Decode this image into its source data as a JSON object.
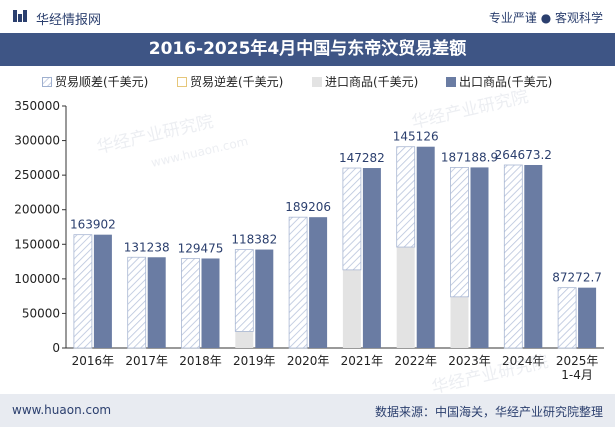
{
  "header": {
    "brand": "华经情报网",
    "slogan": "专业严谨 ● 客观科学"
  },
  "footer": {
    "website": "www.huaon.com",
    "source": "数据来源：中国海关，华经产业研究院整理"
  },
  "watermark": {
    "text": "华经产业研究院",
    "url": "www.huaon.com"
  },
  "colors": {
    "title_bg": "#3e5585",
    "export_bar": "#6a7ca3",
    "import_bar": "#e3e3e3",
    "surplus_stripe": "#9fb0cf",
    "footer_bg": "#e8ebf1"
  },
  "chart_data": {
    "type": "bar",
    "title": "2016-2025年4月中国与东帝汶贸易差额",
    "categories": [
      "2016年",
      "2017年",
      "2018年",
      "2019年",
      "2020年",
      "2021年",
      "2022年",
      "2023年",
      "2024年",
      "2025年\n1-4月"
    ],
    "series": [
      {
        "name": "贸易顺差(千美元)",
        "values": [
          163902,
          131238,
          129475,
          118382,
          189206,
          147282,
          145126,
          187188.9,
          264673.2,
          87272.7
        ]
      },
      {
        "name": "贸易逆差(千美元)",
        "values": [
          0,
          0,
          0,
          0,
          0,
          0,
          0,
          0,
          0,
          0
        ]
      },
      {
        "name": "进口商品(千美元)",
        "values": [
          0,
          0,
          0,
          24000,
          0,
          113000,
          146000,
          74000,
          0,
          0
        ]
      },
      {
        "name": "出口商品(千美元)",
        "values": [
          163902,
          131238,
          129475,
          142382,
          189206,
          260282,
          291126,
          261188.9,
          264673.2,
          87272.7
        ]
      }
    ],
    "data_labels": [
      "163902",
      "131238",
      "129475",
      "118382",
      "189206",
      "147282",
      "145126",
      "187188.9",
      "264673.2",
      "87272.7"
    ],
    "y_ticks": [
      "0",
      "50000",
      "100000",
      "150000",
      "200000",
      "250000",
      "300000",
      "350000"
    ],
    "ylim": [
      0,
      350000
    ],
    "grid": false,
    "legend_position": "top"
  }
}
